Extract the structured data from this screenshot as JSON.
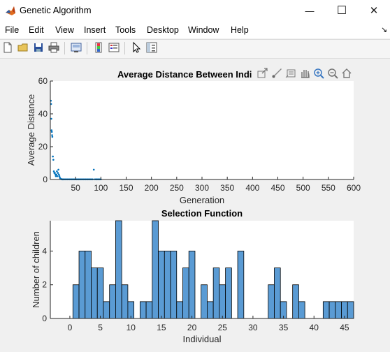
{
  "window": {
    "title": "Genetic Algorithm",
    "minimize_glyph": "—",
    "maximize_glyph": "☐",
    "close_glyph": "✕"
  },
  "menu": [
    "File",
    "Edit",
    "View",
    "Insert",
    "Tools",
    "Desktop",
    "Window",
    "Help"
  ],
  "menu_overflow_glyph": "↘",
  "toolbar": {
    "icons": [
      "new-figure-icon",
      "open-file-icon",
      "save-icon",
      "print-icon",
      "link-icon",
      "colorbar-icon",
      "legend-icon",
      "pointer-icon",
      "property-editor-icon"
    ]
  },
  "axes_toolbar": {
    "icons": [
      "export-icon",
      "brush-icon",
      "datatip-icon",
      "pan-icon",
      "zoom-in-icon",
      "zoom-out-icon",
      "home-icon"
    ]
  },
  "colors": {
    "series": "#0072bd",
    "bar_fill": "#5a9bd4",
    "bar_edge": "#000000"
  },
  "chart_data": [
    {
      "type": "scatter",
      "title": "Average Distance Between Indi",
      "xlabel": "Generation",
      "ylabel": "Average Distance",
      "xlim": [
        0,
        600
      ],
      "ylim": [
        0,
        60
      ],
      "xticks": [
        50,
        100,
        150,
        200,
        250,
        300,
        350,
        400,
        450,
        500,
        550,
        600
      ],
      "yticks": [
        0,
        20,
        40,
        60
      ],
      "grid": false,
      "x": [
        1,
        1.5,
        2,
        2.5,
        3,
        3.5,
        4,
        5,
        6,
        7,
        8,
        9,
        10,
        11,
        12,
        13,
        14,
        15,
        16,
        17,
        18,
        19,
        20,
        21,
        22,
        23,
        24,
        25,
        26,
        28,
        30,
        32,
        34,
        36,
        38,
        40,
        42,
        44,
        46,
        48,
        50,
        52,
        54,
        56,
        58,
        60,
        62,
        64,
        66,
        68,
        70,
        72,
        74,
        76,
        78,
        80,
        82,
        84,
        86,
        88,
        90,
        92,
        94,
        96,
        98,
        100
      ],
      "y": [
        48,
        46,
        37,
        30,
        29,
        27,
        26,
        14,
        12,
        5,
        4,
        4,
        3,
        2,
        3,
        5,
        2,
        4,
        6,
        3,
        2,
        1,
        0.5,
        0.3,
        0.2,
        0.1,
        0.1,
        0.1,
        0.1,
        0.1,
        0.1,
        0.1,
        0.1,
        0.1,
        0.1,
        0.1,
        0.1,
        0.1,
        0.1,
        0.1,
        0.1,
        0.1,
        0.1,
        0.1,
        0.1,
        0.1,
        0.1,
        0.1,
        0.1,
        0.1,
        0.1,
        0.1,
        0.1,
        0.1,
        0.1,
        0.1,
        0.1,
        0.1,
        6,
        0.1,
        0.1,
        0.1,
        0.1,
        0.1,
        0.1,
        0.1
      ]
    },
    {
      "type": "bar",
      "title": "Selection Function",
      "xlabel": "Individual",
      "ylabel": "Number of children",
      "xlim": [
        -3.2,
        46.5
      ],
      "ylim": [
        0,
        5.8
      ],
      "xticks": [
        0,
        5,
        10,
        15,
        20,
        25,
        30,
        35,
        40,
        45
      ],
      "yticks": [
        0,
        2,
        4
      ],
      "grid": false,
      "x": [
        1,
        2,
        3,
        4,
        5,
        6,
        7,
        8,
        9,
        10,
        11,
        12,
        13,
        14,
        15,
        16,
        17,
        18,
        19,
        20,
        21,
        22,
        23,
        24,
        25,
        26,
        27,
        28,
        29,
        30,
        31,
        32,
        33,
        34,
        35,
        36,
        37,
        38,
        39,
        40,
        41,
        42,
        43,
        44,
        45,
        46,
        47
      ],
      "values": [
        2,
        4,
        4,
        3,
        3,
        1,
        2,
        6,
        2,
        1,
        0,
        1,
        1,
        6,
        4,
        4,
        4,
        1,
        3,
        4,
        0,
        2,
        1,
        3,
        2,
        3,
        0,
        4,
        0,
        0,
        0,
        0,
        2,
        3,
        1,
        0,
        2,
        1,
        0,
        0,
        0,
        1,
        1,
        1,
        1,
        1,
        2
      ]
    }
  ]
}
